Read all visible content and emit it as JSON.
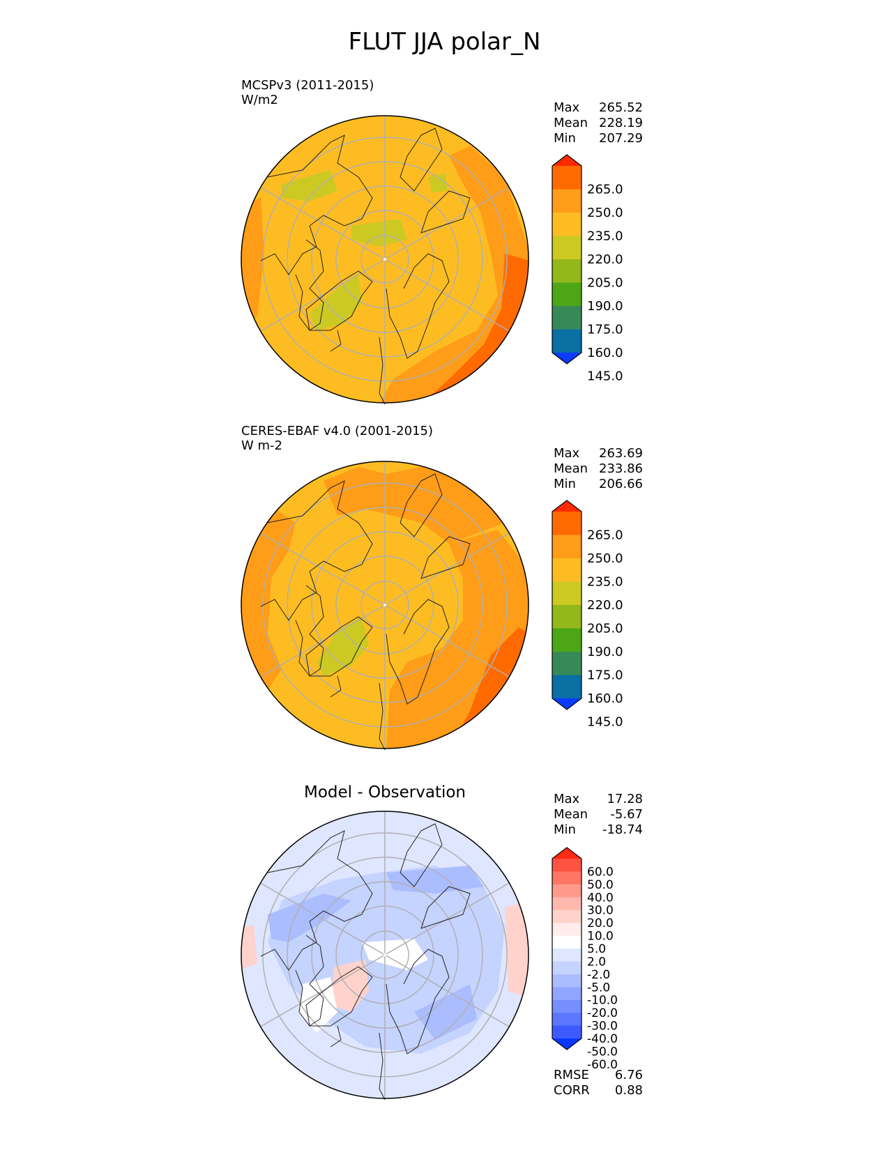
{
  "figure": {
    "title": "FLUT JJA polar_N"
  },
  "panels": [
    {
      "id": "test",
      "name": "MCSPv3 (2011-2015)",
      "units": "W/m2",
      "stats": [
        {
          "label": "Max",
          "value": "265.52"
        },
        {
          "label": "Mean",
          "value": "228.19"
        },
        {
          "label": "Min",
          "value": "207.29"
        }
      ],
      "colorbar": {
        "labels": [
          "265.0",
          "250.0",
          "235.0",
          "220.0",
          "205.0",
          "190.0",
          "175.0",
          "160.0",
          "145.0"
        ]
      }
    },
    {
      "id": "ref",
      "name": "CERES-EBAF v4.0 (2001-2015)",
      "units": "W m-2",
      "stats": [
        {
          "label": "Max",
          "value": "263.69"
        },
        {
          "label": "Mean",
          "value": "233.86"
        },
        {
          "label": "Min",
          "value": "206.66"
        }
      ],
      "colorbar": {
        "labels": [
          "265.0",
          "250.0",
          "235.0",
          "220.0",
          "205.0",
          "190.0",
          "175.0",
          "160.0",
          "145.0"
        ]
      }
    },
    {
      "id": "diff",
      "title": "Model - Observation",
      "stats": [
        {
          "label": "Max",
          "value": "17.28"
        },
        {
          "label": "Mean",
          "value": "-5.67"
        },
        {
          "label": "Min",
          "value": "-18.74"
        }
      ],
      "metrics": [
        {
          "label": "RMSE",
          "value": "6.76"
        },
        {
          "label": "CORR",
          "value": "0.88"
        }
      ],
      "colorbar": {
        "labels": [
          "60.0",
          "50.0",
          "40.0",
          "30.0",
          "20.0",
          "10.0",
          "5.0",
          "2.0",
          "-2.0",
          "-5.0",
          "-10.0",
          "-20.0",
          "-30.0",
          "-40.0",
          "-50.0",
          "-60.0"
        ]
      }
    }
  ],
  "colors": {
    "main_scale": [
      "#ff2a00",
      "#ff6a00",
      "#ff9c18",
      "#fdbd22",
      "#cdc923",
      "#93b81a",
      "#4da616",
      "#378a58",
      "#0a6fa2",
      "#0a3bff"
    ],
    "diff_scale": [
      "#ff2a12",
      "#ff5240",
      "#ff7665",
      "#ff9a8a",
      "#ffb8ad",
      "#ffd3cc",
      "#ffeceb",
      "#ffffff",
      "#dfe6ff",
      "#c5d3ff",
      "#abbdff",
      "#90a6ff",
      "#768fff",
      "#5b76ff",
      "#3c5aff",
      "#0a37ff"
    ],
    "base_fill": "#fdbd22",
    "diff_base": "#c5d3ff"
  }
}
